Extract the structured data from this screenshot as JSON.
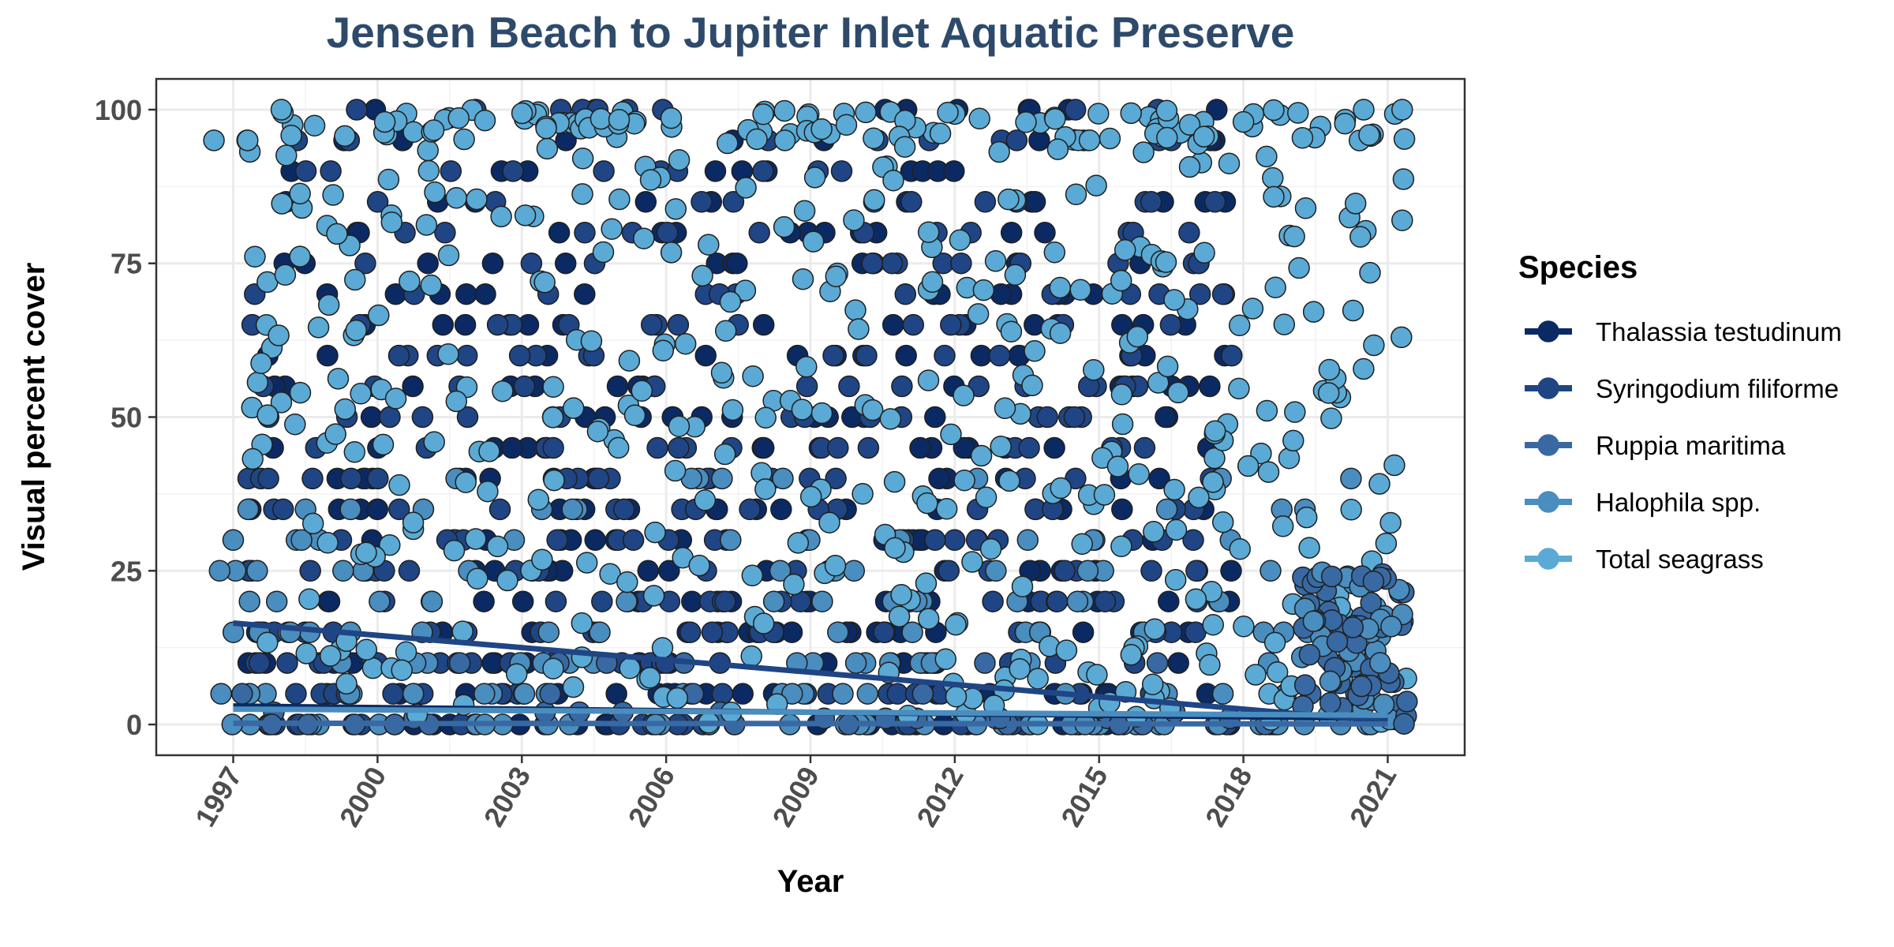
{
  "chart_data": {
    "type": "scatter",
    "title": "Jensen Beach to Jupiter Inlet Aquatic Preserve",
    "xlabel": "Year",
    "ylabel": "Visual percent cover",
    "xlim": [
      1995.4,
      2022.6
    ],
    "ylim": [
      -5,
      105
    ],
    "x_ticks": [
      1997,
      2000,
      2003,
      2006,
      2009,
      2012,
      2015,
      2018,
      2021
    ],
    "x_tick_labels": [
      "1997",
      "2000",
      "2003",
      "2006",
      "2009",
      "2012",
      "2015",
      "2018",
      "2021"
    ],
    "y_ticks": [
      0,
      25,
      50,
      75,
      100
    ],
    "y_tick_labels": [
      "0",
      "25",
      "50",
      "75",
      "100"
    ],
    "x_tick_rotation_deg": -60,
    "grid": true,
    "legend": {
      "title": "Species",
      "position": "right",
      "entries": [
        "Thalassia testudinum",
        "Syringodium filiforme",
        "Ruppia maritima",
        "Halophila spp.",
        "Total seagrass"
      ]
    },
    "colors": {
      "Thalassia testudinum": "#0b2a63",
      "Syringodium filiforme": "#1f4585",
      "Ruppia maritima": "#3869a3",
      "Halophila spp.": "#4a8dbf",
      "Total seagrass": "#5aaad5"
    },
    "series": [
      {
        "name": "Thalassia testudinum",
        "x_range": [
          1996.7,
          2021.4
        ],
        "dense_y_levels": [
          0,
          5,
          10,
          15,
          20,
          25,
          30,
          35,
          40,
          45,
          50,
          55,
          60,
          65,
          70,
          75,
          80,
          85,
          90,
          95,
          100
        ],
        "trend": {
          "x": [
            1997,
            2021
          ],
          "y": [
            3,
            1
          ]
        }
      },
      {
        "name": "Syringodium filiforme",
        "x_range": [
          1996.7,
          2021.4
        ],
        "dense_y_levels": [
          0,
          5,
          10,
          15,
          20,
          25,
          30,
          35,
          40,
          45,
          50,
          55,
          60,
          65,
          70,
          75,
          80,
          85,
          90,
          95,
          100
        ],
        "trend": {
          "x": [
            1997,
            2021
          ],
          "y": [
            16.5,
            0.5
          ]
        }
      },
      {
        "name": "Ruppia maritima",
        "x_range": [
          1996.7,
          2021.4
        ],
        "dense_y_levels": [
          0,
          1,
          2,
          5,
          10
        ],
        "trend": {
          "x": [
            1997,
            2021
          ],
          "y": [
            0.2,
            0.1
          ]
        }
      },
      {
        "name": "Halophila spp.",
        "x_range": [
          1996.7,
          2021.4
        ],
        "dense_y_levels": [
          0,
          5,
          10,
          15,
          20,
          25,
          30,
          35,
          40
        ],
        "trend": {
          "x": [
            1997,
            2021
          ],
          "y": [
            2.5,
            1.5
          ]
        }
      },
      {
        "name": "Total seagrass",
        "x_range": [
          1996.5,
          2021.4
        ],
        "dense_y_levels": "continuous 0-100",
        "sample_points": [
          [
            1996.6,
            95
          ],
          [
            1997.3,
            95
          ],
          [
            1998.0,
            100
          ],
          [
            2018.0,
            98
          ],
          [
            2020.5,
            100
          ],
          [
            2021.3,
            100
          ],
          [
            2021.3,
            82
          ]
        ]
      }
    ]
  }
}
